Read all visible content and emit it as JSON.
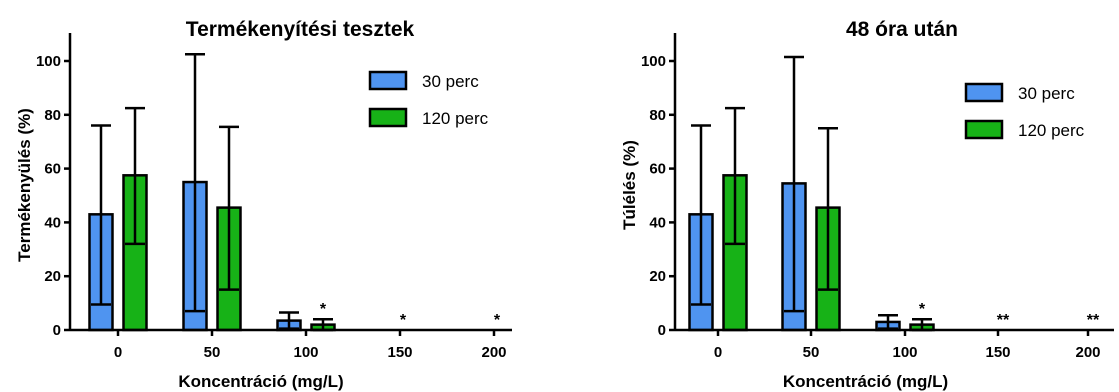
{
  "chart_data": [
    {
      "type": "bar",
      "title": "Termékenyítési tesztek",
      "xlabel": "Koncentráció (mg/L)",
      "ylabel": "Termékenyülés (%)",
      "categories": [
        "0",
        "50",
        "100",
        "150",
        "200"
      ],
      "ylim": [
        0,
        100
      ],
      "yticks": [
        0,
        20,
        40,
        60,
        80,
        100
      ],
      "legend_position": "top-right",
      "series": [
        {
          "name": "30 perc",
          "color": "#4f94f0",
          "values": [
            43,
            55,
            3.5,
            0,
            0
          ],
          "err_low": [
            9.5,
            7,
            0.5,
            0,
            0
          ],
          "err_high": [
            76,
            102.5,
            6.5,
            0,
            0
          ]
        },
        {
          "name": "120 perc",
          "color": "#17b217",
          "values": [
            57.5,
            45.5,
            2,
            0,
            0
          ],
          "err_low": [
            32,
            15,
            0,
            0,
            0
          ],
          "err_high": [
            82.5,
            75.5,
            4,
            0,
            0
          ]
        }
      ],
      "annotations": [
        {
          "category": "100",
          "series": "120 perc",
          "text": "*"
        },
        {
          "category": "150",
          "series": "120 perc",
          "text": "*"
        },
        {
          "category": "200",
          "series": "120 perc",
          "text": "*"
        }
      ]
    },
    {
      "type": "bar",
      "title": "48 óra után",
      "xlabel": "Koncentráció (mg/L)",
      "ylabel": "Túlélés (%)",
      "categories": [
        "0",
        "50",
        "100",
        "150",
        "200"
      ],
      "ylim": [
        0,
        100
      ],
      "yticks": [
        0,
        20,
        40,
        60,
        80,
        100
      ],
      "legend_position": "top-right",
      "series": [
        {
          "name": "30 perc",
          "color": "#4f94f0",
          "values": [
            43,
            54.5,
            3,
            0,
            0
          ],
          "err_low": [
            9.5,
            7,
            0.5,
            0,
            0
          ],
          "err_high": [
            76,
            101.5,
            5.5,
            0,
            0
          ]
        },
        {
          "name": "120 perc",
          "color": "#17b217",
          "values": [
            57.5,
            45.5,
            2,
            0,
            0
          ],
          "err_low": [
            32,
            15,
            0,
            0,
            0
          ],
          "err_high": [
            82.5,
            75,
            4,
            0,
            0
          ]
        }
      ],
      "annotations": [
        {
          "category": "100",
          "series": "120 perc",
          "text": "*"
        },
        {
          "category": "150",
          "series": "120 perc",
          "text": "**"
        },
        {
          "category": "200",
          "series": "120 perc",
          "text": "**"
        }
      ]
    }
  ]
}
